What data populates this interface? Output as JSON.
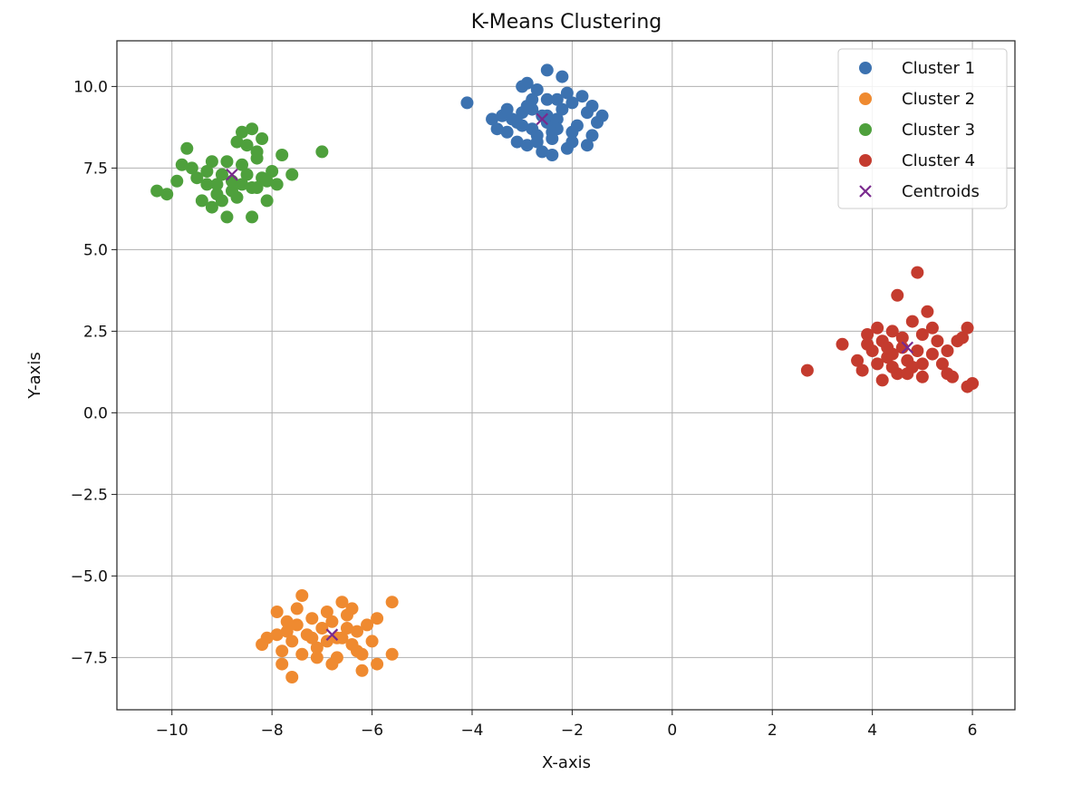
{
  "chart_data": {
    "type": "scatter",
    "title": "K-Means Clustering",
    "xlabel": "X-axis",
    "ylabel": "Y-axis",
    "xlim": [
      -11.1,
      6.85
    ],
    "ylim": [
      -9.1,
      11.4
    ],
    "x_ticks": [
      -10,
      -8,
      -6,
      -4,
      -2,
      0,
      2,
      4,
      6
    ],
    "x_tick_labels": [
      "−10",
      "−8",
      "−6",
      "−4",
      "−2",
      "0",
      "2",
      "4",
      "6"
    ],
    "y_ticks": [
      -7.5,
      -5.0,
      -2.5,
      0.0,
      2.5,
      5.0,
      7.5,
      10.0
    ],
    "y_tick_labels": [
      "−7.5",
      "−5.0",
      "−2.5",
      "0.0",
      "2.5",
      "5.0",
      "7.5",
      "10.0"
    ],
    "grid": true,
    "legend_position": "top-right",
    "series": [
      {
        "name": "Cluster 1",
        "color": "#3c72b0",
        "points": [
          [
            -4.1,
            9.5
          ],
          [
            -3.6,
            9.0
          ],
          [
            -3.5,
            8.7
          ],
          [
            -3.4,
            9.1
          ],
          [
            -3.3,
            8.6
          ],
          [
            -3.2,
            9.0
          ],
          [
            -3.1,
            8.3
          ],
          [
            -3.0,
            9.2
          ],
          [
            -3.0,
            8.8
          ],
          [
            -2.9,
            8.2
          ],
          [
            -2.8,
            9.3
          ],
          [
            -2.8,
            8.7
          ],
          [
            -2.7,
            8.5
          ],
          [
            -2.6,
            9.1
          ],
          [
            -2.5,
            8.9
          ],
          [
            -2.5,
            9.6
          ],
          [
            -2.4,
            8.4
          ],
          [
            -2.3,
            9.0
          ],
          [
            -2.3,
            8.7
          ],
          [
            -2.2,
            9.3
          ],
          [
            -2.1,
            8.1
          ],
          [
            -2.0,
            8.6
          ],
          [
            -2.0,
            9.5
          ],
          [
            -1.9,
            8.8
          ],
          [
            -1.7,
            9.2
          ],
          [
            -1.6,
            8.5
          ],
          [
            -1.5,
            8.9
          ],
          [
            -1.4,
            9.1
          ],
          [
            -2.7,
            9.9
          ],
          [
            -2.5,
            10.5
          ],
          [
            -2.2,
            10.3
          ],
          [
            -2.9,
            10.1
          ],
          [
            -2.4,
            7.9
          ],
          [
            -2.6,
            8.0
          ],
          [
            -3.3,
            9.3
          ],
          [
            -2.0,
            8.3
          ],
          [
            -2.8,
            9.6
          ],
          [
            -2.3,
            9.6
          ],
          [
            -3.0,
            10.0
          ],
          [
            -1.7,
            8.2
          ],
          [
            -2.1,
            9.8
          ],
          [
            -2.5,
            9.1
          ],
          [
            -2.7,
            8.3
          ],
          [
            -3.1,
            8.9
          ],
          [
            -1.8,
            9.7
          ],
          [
            -2.4,
            8.6
          ],
          [
            -2.9,
            9.4
          ],
          [
            -1.6,
            9.4
          ]
        ]
      },
      {
        "name": "Cluster 2",
        "color": "#ef8a30",
        "points": [
          [
            -8.2,
            -7.1
          ],
          [
            -8.1,
            -6.9
          ],
          [
            -7.9,
            -6.1
          ],
          [
            -7.8,
            -7.3
          ],
          [
            -7.7,
            -6.7
          ],
          [
            -7.6,
            -7.0
          ],
          [
            -7.5,
            -6.5
          ],
          [
            -7.4,
            -7.4
          ],
          [
            -7.3,
            -6.8
          ],
          [
            -7.2,
            -6.3
          ],
          [
            -7.1,
            -7.2
          ],
          [
            -7.0,
            -6.6
          ],
          [
            -6.9,
            -7.0
          ],
          [
            -6.8,
            -6.4
          ],
          [
            -6.7,
            -7.5
          ],
          [
            -6.6,
            -6.9
          ],
          [
            -6.5,
            -6.2
          ],
          [
            -6.4,
            -7.1
          ],
          [
            -6.3,
            -6.7
          ],
          [
            -6.2,
            -7.4
          ],
          [
            -6.1,
            -6.5
          ],
          [
            -6.0,
            -7.0
          ],
          [
            -5.9,
            -6.3
          ],
          [
            -5.6,
            -7.4
          ],
          [
            -5.6,
            -5.8
          ],
          [
            -7.4,
            -5.6
          ],
          [
            -7.6,
            -8.1
          ],
          [
            -7.8,
            -7.7
          ],
          [
            -6.2,
            -7.9
          ],
          [
            -6.6,
            -5.8
          ],
          [
            -5.9,
            -7.7
          ],
          [
            -7.5,
            -6.0
          ],
          [
            -6.9,
            -6.1
          ],
          [
            -6.4,
            -6.0
          ],
          [
            -7.1,
            -7.5
          ],
          [
            -6.7,
            -6.9
          ],
          [
            -6.3,
            -7.3
          ],
          [
            -7.7,
            -6.4
          ],
          [
            -6.8,
            -7.7
          ],
          [
            -6.5,
            -6.6
          ],
          [
            -7.9,
            -6.8
          ],
          [
            -7.2,
            -6.9
          ]
        ]
      },
      {
        "name": "Cluster 3",
        "color": "#4ea03c",
        "points": [
          [
            -10.3,
            6.8
          ],
          [
            -10.1,
            6.7
          ],
          [
            -9.9,
            7.1
          ],
          [
            -9.8,
            7.6
          ],
          [
            -9.7,
            8.1
          ],
          [
            -9.5,
            7.2
          ],
          [
            -9.4,
            6.5
          ],
          [
            -9.3,
            7.0
          ],
          [
            -9.2,
            7.7
          ],
          [
            -9.1,
            6.7
          ],
          [
            -9.0,
            7.3
          ],
          [
            -8.9,
            6.0
          ],
          [
            -8.8,
            7.1
          ],
          [
            -8.7,
            6.6
          ],
          [
            -8.6,
            7.6
          ],
          [
            -8.5,
            8.2
          ],
          [
            -8.4,
            6.9
          ],
          [
            -8.3,
            7.8
          ],
          [
            -8.2,
            7.2
          ],
          [
            -8.1,
            6.5
          ],
          [
            -8.0,
            7.4
          ],
          [
            -7.9,
            7.0
          ],
          [
            -7.8,
            7.9
          ],
          [
            -7.6,
            7.3
          ],
          [
            -7.0,
            8.0
          ],
          [
            -8.6,
            8.6
          ],
          [
            -8.4,
            8.7
          ],
          [
            -8.2,
            8.4
          ],
          [
            -8.4,
            6.0
          ],
          [
            -9.2,
            6.3
          ],
          [
            -8.8,
            6.8
          ],
          [
            -9.0,
            6.5
          ],
          [
            -8.5,
            7.3
          ],
          [
            -8.3,
            6.9
          ],
          [
            -8.1,
            7.1
          ],
          [
            -8.7,
            8.3
          ],
          [
            -9.3,
            7.4
          ],
          [
            -9.6,
            7.5
          ],
          [
            -8.9,
            7.7
          ],
          [
            -8.3,
            8.0
          ],
          [
            -9.1,
            7.0
          ],
          [
            -8.6,
            7.0
          ]
        ]
      },
      {
        "name": "Cluster 4",
        "color": "#c43b2e",
        "points": [
          [
            2.7,
            1.3
          ],
          [
            3.4,
            2.1
          ],
          [
            3.7,
            1.6
          ],
          [
            3.8,
            1.3
          ],
          [
            3.9,
            2.4
          ],
          [
            4.0,
            1.9
          ],
          [
            4.1,
            1.5
          ],
          [
            4.2,
            2.2
          ],
          [
            4.3,
            1.7
          ],
          [
            4.4,
            2.5
          ],
          [
            4.5,
            1.2
          ],
          [
            4.5,
            3.6
          ],
          [
            4.6,
            2.0
          ],
          [
            4.7,
            1.6
          ],
          [
            4.8,
            2.8
          ],
          [
            4.9,
            1.9
          ],
          [
            5.0,
            2.4
          ],
          [
            5.0,
            1.1
          ],
          [
            5.1,
            3.1
          ],
          [
            5.2,
            1.8
          ],
          [
            5.3,
            2.2
          ],
          [
            5.4,
            1.5
          ],
          [
            5.5,
            1.2
          ],
          [
            5.6,
            1.1
          ],
          [
            5.7,
            2.2
          ],
          [
            5.8,
            2.3
          ],
          [
            5.9,
            2.6
          ],
          [
            5.9,
            0.8
          ],
          [
            6.0,
            0.9
          ],
          [
            4.9,
            4.3
          ],
          [
            4.2,
            1.0
          ],
          [
            4.4,
            1.8
          ],
          [
            4.8,
            1.4
          ],
          [
            5.2,
            2.6
          ],
          [
            4.1,
            2.6
          ],
          [
            4.6,
            2.3
          ],
          [
            5.0,
            1.5
          ],
          [
            4.3,
            2.0
          ],
          [
            3.9,
            2.1
          ],
          [
            4.7,
            1.2
          ],
          [
            5.5,
            1.9
          ],
          [
            4.4,
            1.4
          ]
        ]
      }
    ],
    "centroids": {
      "name": "Centroids",
      "color": "#7a2a8e",
      "points": [
        [
          -2.6,
          9.0
        ],
        [
          -6.8,
          -6.8
        ],
        [
          -8.8,
          7.3
        ],
        [
          4.7,
          2.0
        ]
      ]
    }
  }
}
